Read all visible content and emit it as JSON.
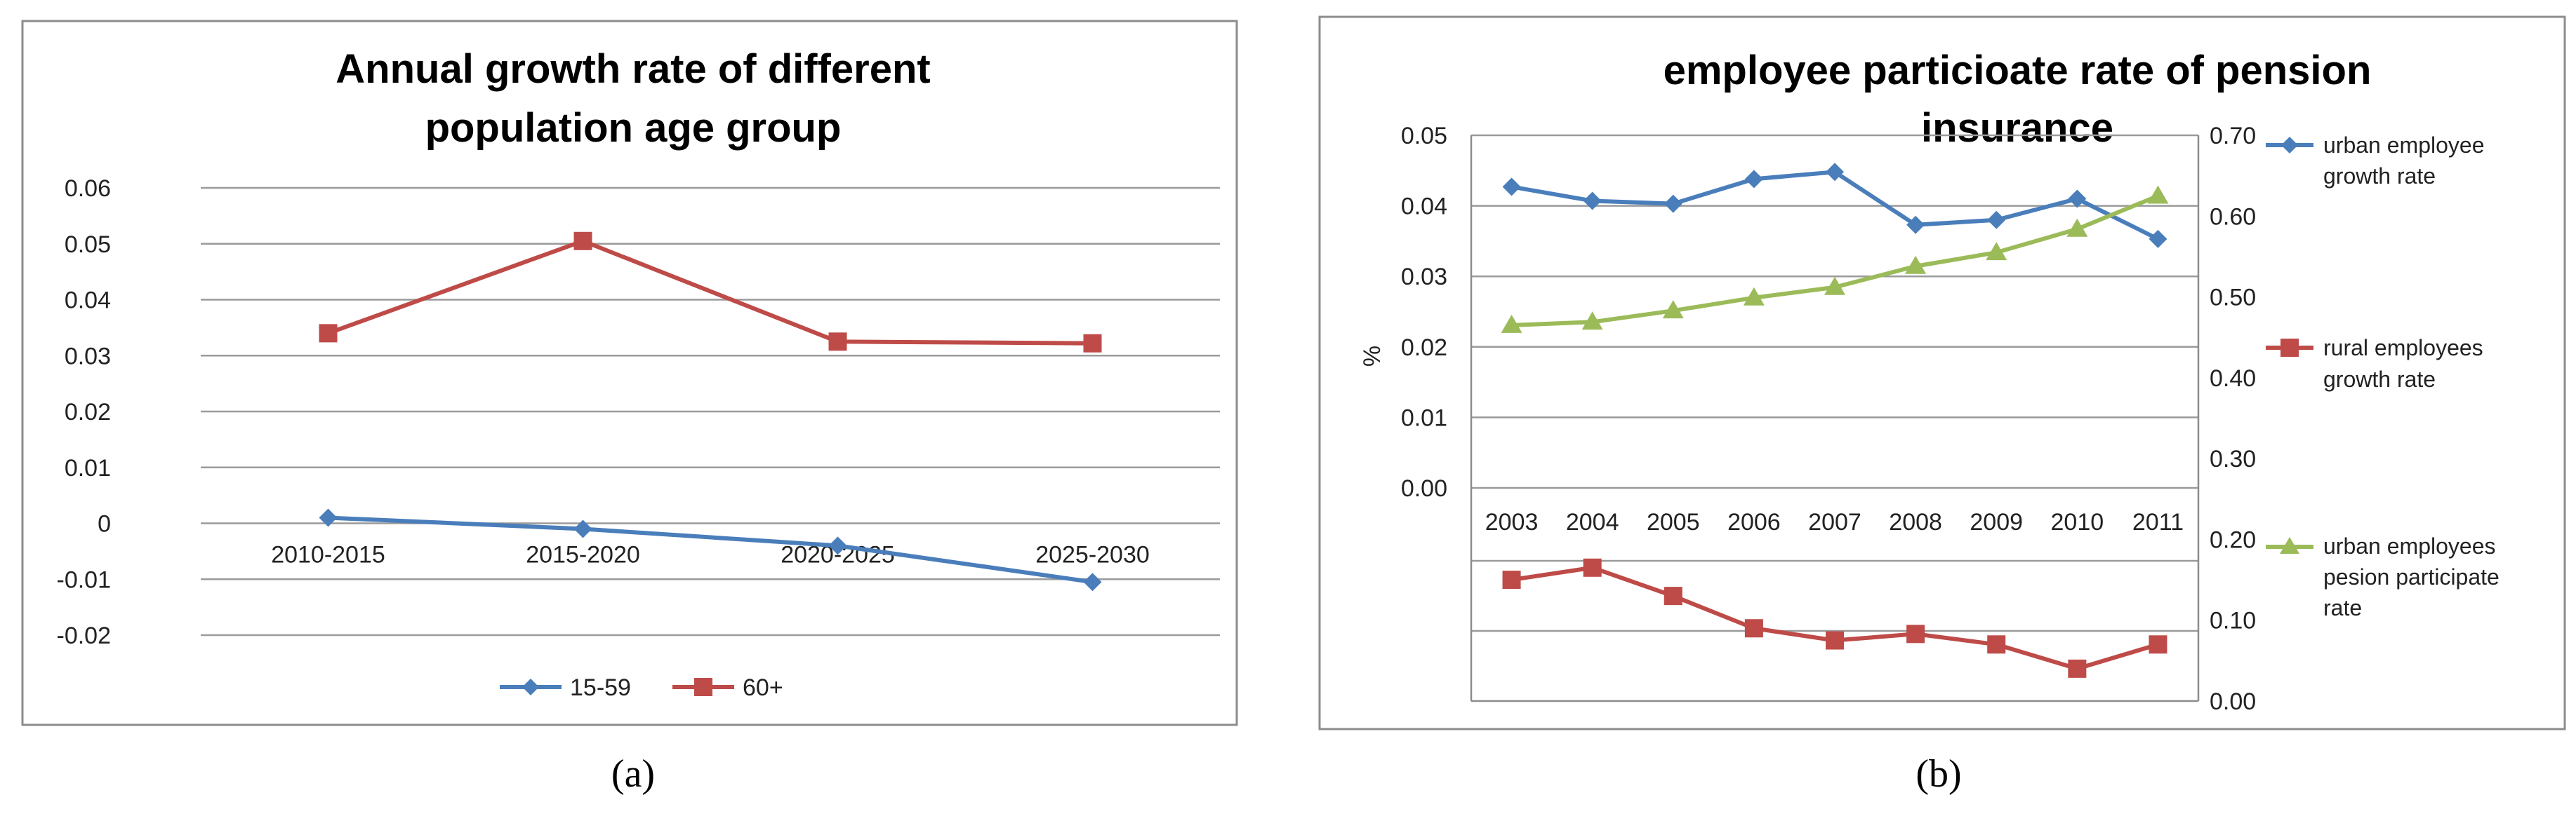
{
  "captions": {
    "a": "(a)",
    "b": "(b)"
  },
  "chart_data": [
    {
      "type": "line",
      "title_line1": "Annual growth rate of  different",
      "title_line2": "population age group",
      "xlabel": "",
      "ylabel": "",
      "categories": [
        "2010-2015",
        "2015-2020",
        "2020-2025",
        "2025-2030"
      ],
      "yticks": [
        "0.06",
        "0.05",
        "0.04",
        "0.03",
        "0.02",
        "0.01",
        "0",
        "-0.01",
        "-0.02"
      ],
      "ylim": [
        -0.02,
        0.06
      ],
      "grid": true,
      "legend_position": "bottom",
      "series": [
        {
          "name": "15-59",
          "values": [
            0.001,
            -0.001,
            -0.004,
            -0.0105
          ],
          "color": "#4a7ebb",
          "marker": "diamond"
        },
        {
          "name": "60+",
          "values": [
            0.034,
            0.0505,
            0.0325,
            0.0322
          ],
          "color": "#be4b48",
          "marker": "square"
        }
      ]
    },
    {
      "type": "line",
      "title_line1": "employee particioate rate of pension",
      "title_line2": "insurance",
      "xlabel": "",
      "ylabel": "%",
      "categories": [
        "2003",
        "2004",
        "2005",
        "2006",
        "2007",
        "2008",
        "2009",
        "2010",
        "2011"
      ],
      "left_yticks": [
        "0.05",
        "0.04",
        "0.03",
        "0.02",
        "0.01",
        "0.00"
      ],
      "right_yticks": [
        "0.70",
        "0.60",
        "0.50",
        "0.40",
        "0.30",
        "0.20",
        "0.10",
        "0.00"
      ],
      "left_ylim": [
        0.0,
        0.05
      ],
      "right_ylim": [
        0.0,
        0.7
      ],
      "grid": true,
      "legend_position": "right",
      "series": [
        {
          "name_line1": "urban employee",
          "name_line2": "growth rate",
          "name_line3": "",
          "axis": "left",
          "values": [
            0.0427,
            0.0407,
            0.0403,
            0.0438,
            0.0448,
            0.0373,
            0.038,
            0.041,
            0.0353
          ],
          "color": "#4a7ebb",
          "marker": "diamond"
        },
        {
          "name_line1": "rural employees",
          "name_line2": "growth rate",
          "name_line3": "",
          "axis": "right",
          "values": [
            0.15,
            0.165,
            0.13,
            0.09,
            0.075,
            0.083,
            0.07,
            0.04,
            0.07
          ],
          "color": "#be4b48",
          "marker": "square"
        },
        {
          "name_line1": "urban employees",
          "name_line2": "pesion participate",
          "name_line3": "rate",
          "axis": "right",
          "values": [
            0.465,
            0.469,
            0.483,
            0.499,
            0.512,
            0.538,
            0.555,
            0.584,
            0.625
          ],
          "color": "#9bbb59",
          "marker": "triangle"
        }
      ]
    }
  ]
}
